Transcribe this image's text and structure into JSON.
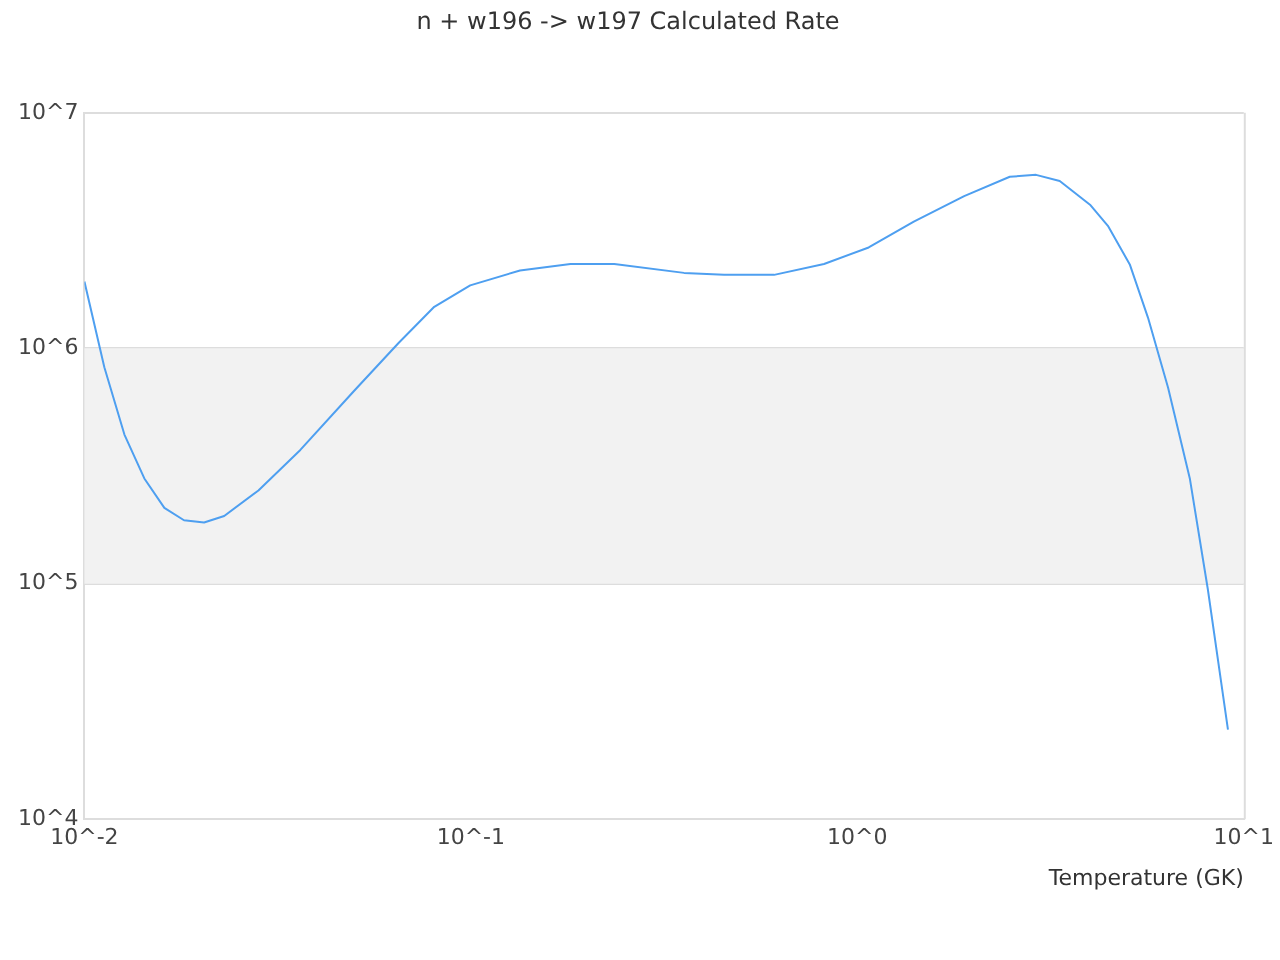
{
  "chart_data": {
    "type": "line",
    "title": "n + w196 -> w197 Calculated Rate",
    "xlabel": "Temperature (GK)",
    "log": "xy",
    "grid": "y",
    "legend": false,
    "marker": "none",
    "xlim": [
      0.01,
      10
    ],
    "xticks": [
      {
        "value": 0.01,
        "label": "10^-2"
      },
      {
        "value": 0.1,
        "label": "10^-1"
      },
      {
        "value": 1,
        "label": "10^0"
      },
      {
        "value": 10,
        "label": "10^1"
      }
    ],
    "ylim": [
      10000,
      10000000
    ],
    "yticks": [
      {
        "value": 10000,
        "label": "10^4"
      },
      {
        "value": 100000,
        "label": "10^5"
      },
      {
        "value": 1000000,
        "label": "10^6"
      },
      {
        "value": 10000000,
        "label": "10^7"
      }
    ],
    "bands": [
      {
        "axis": "y",
        "from": 100000,
        "to": 1000000,
        "color": "#f2f2f2"
      }
    ],
    "series": [
      {
        "color": "#4e9ff0",
        "x": [
          0.01,
          0.01126,
          0.01269,
          0.01429,
          0.0161,
          0.0181,
          0.0204,
          0.023,
          0.0282,
          0.0362,
          0.0499,
          0.0649,
          0.0804,
          0.0996,
          0.134,
          0.181,
          0.235,
          0.356,
          0.452,
          0.609,
          0.82,
          1.07,
          1.4,
          1.89,
          2.48,
          2.9,
          3.34,
          4.0,
          4.45,
          5.07,
          5.65,
          6.37,
          7.25,
          8.07,
          9.1
        ],
        "values": [
          1920000,
          830000,
          430000,
          280000,
          210000,
          186000,
          182000,
          194000,
          249000,
          370000,
          660000,
          1050000,
          1500000,
          1850000,
          2140000,
          2280000,
          2280000,
          2090000,
          2050000,
          2050000,
          2280000,
          2680000,
          3450000,
          4430000,
          5350000,
          5450000,
          5130000,
          4070000,
          3310000,
          2270000,
          1350000,
          680000,
          280000,
          95000,
          24000
        ]
      }
    ]
  }
}
